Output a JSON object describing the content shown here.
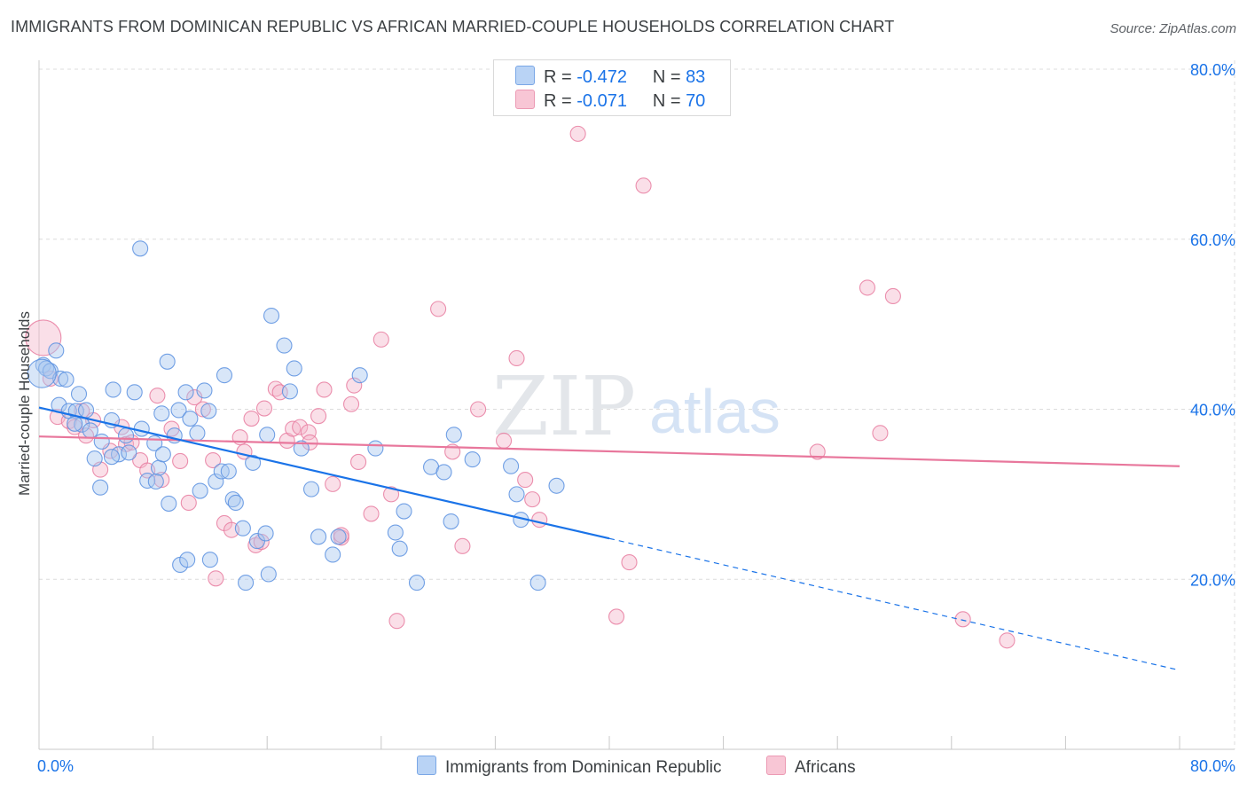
{
  "title": "IMMIGRANTS FROM DOMINICAN REPUBLIC VS AFRICAN MARRIED-COUPLE HOUSEHOLDS CORRELATION CHART",
  "source": "Source: ZipAtlas.com",
  "watermark": {
    "zip": "ZIP",
    "atlas": "atlas"
  },
  "legend": {
    "blue": {
      "r_label": "R =",
      "r_value": "-0.472",
      "n_label": "N =",
      "n_value": "83"
    },
    "pink": {
      "r_label": "R =",
      "r_value": "-0.071",
      "n_label": "N =",
      "n_value": "70"
    }
  },
  "colors": {
    "blue": "#1a73e8",
    "pink": "#e8779c",
    "blue_fill": "#a8c8f0",
    "pink_fill": "#f5b8cb",
    "grid": "#dcdcdc"
  },
  "chart_data": {
    "type": "scatter",
    "title": "IMMIGRANTS FROM DOMINICAN REPUBLIC VS AFRICAN MARRIED-COUPLE HOUSEHOLDS CORRELATION CHART",
    "xlabel": "",
    "ylabel": "Married-couple Households",
    "xlim": [
      0,
      80
    ],
    "ylim": [
      0,
      80
    ],
    "x_tick_labels": [
      "0.0%",
      "80.0%"
    ],
    "y_tick_labels": [
      "20.0%",
      "40.0%",
      "60.0%",
      "80.0%"
    ],
    "y_ticks": [
      20,
      40,
      60,
      80
    ],
    "series": [
      {
        "name": "Immigrants from Dominican Republic",
        "color": "blue",
        "points": [
          [
            0.3,
            45.2
          ],
          [
            0.5,
            44.8
          ],
          [
            0.8,
            44.5
          ],
          [
            1.2,
            46.9
          ],
          [
            1.5,
            43.6
          ],
          [
            1.9,
            43.5
          ],
          [
            1.4,
            40.5
          ],
          [
            2.1,
            39.8
          ],
          [
            2.6,
            39.8
          ],
          [
            2.8,
            41.8
          ],
          [
            3.0,
            38.2
          ],
          [
            3.3,
            39.9
          ],
          [
            3.6,
            37.5
          ],
          [
            3.9,
            34.2
          ],
          [
            4.4,
            36.2
          ],
          [
            5.1,
            38.7
          ],
          [
            5.2,
            42.3
          ],
          [
            5.6,
            34.7
          ],
          [
            6.1,
            36.9
          ],
          [
            6.7,
            42.0
          ],
          [
            6.3,
            34.9
          ],
          [
            7.2,
            37.7
          ],
          [
            7.6,
            31.6
          ],
          [
            8.1,
            36.0
          ],
          [
            8.4,
            33.1
          ],
          [
            8.6,
            39.5
          ],
          [
            9.0,
            45.6
          ],
          [
            8.7,
            34.7
          ],
          [
            9.5,
            36.9
          ],
          [
            9.8,
            39.9
          ],
          [
            10.3,
            42.0
          ],
          [
            10.6,
            38.9
          ],
          [
            11.1,
            37.2
          ],
          [
            11.3,
            30.4
          ],
          [
            11.6,
            42.2
          ],
          [
            11.9,
            39.8
          ],
          [
            12.4,
            31.5
          ],
          [
            12.8,
            32.7
          ],
          [
            13.0,
            44.0
          ],
          [
            13.3,
            32.7
          ],
          [
            13.6,
            29.4
          ],
          [
            13.8,
            29.0
          ],
          [
            14.5,
            19.6
          ],
          [
            14.3,
            26.0
          ],
          [
            15.0,
            33.7
          ],
          [
            15.3,
            24.5
          ],
          [
            16.1,
            20.6
          ],
          [
            16.3,
            51.0
          ],
          [
            16.0,
            37.0
          ],
          [
            17.2,
            47.5
          ],
          [
            17.6,
            42.1
          ],
          [
            17.9,
            44.8
          ],
          [
            18.4,
            35.4
          ],
          [
            19.1,
            30.6
          ],
          [
            19.6,
            25.0
          ],
          [
            21.0,
            25.0
          ],
          [
            20.6,
            22.9
          ],
          [
            22.5,
            44.0
          ],
          [
            23.6,
            35.4
          ],
          [
            25.0,
            25.5
          ],
          [
            25.3,
            23.6
          ],
          [
            25.6,
            28.0
          ],
          [
            26.5,
            19.6
          ],
          [
            27.5,
            33.2
          ],
          [
            28.4,
            32.6
          ],
          [
            28.9,
            26.8
          ],
          [
            29.1,
            37.0
          ],
          [
            30.4,
            34.1
          ],
          [
            33.1,
            33.3
          ],
          [
            33.5,
            30.0
          ],
          [
            33.8,
            27.0
          ],
          [
            35.0,
            19.6
          ],
          [
            36.3,
            31.0
          ],
          [
            5.1,
            34.4
          ],
          [
            7.1,
            58.9
          ],
          [
            9.1,
            28.9
          ],
          [
            12.0,
            22.3
          ],
          [
            9.9,
            21.7
          ],
          [
            10.4,
            22.3
          ],
          [
            2.5,
            38.3
          ],
          [
            4.3,
            30.8
          ],
          [
            8.2,
            31.5
          ],
          [
            15.9,
            25.4
          ]
        ],
        "trend": {
          "x0": 0,
          "y0": 40.2,
          "x1": 40,
          "y1": 24.8,
          "dash_x1": 80,
          "dash_y1": 9.3
        }
      },
      {
        "name": "Africans",
        "color": "pink",
        "points": [
          [
            0.3,
            48.4
          ],
          [
            0.8,
            43.6
          ],
          [
            1.3,
            39.1
          ],
          [
            2.1,
            38.6
          ],
          [
            2.5,
            37.9
          ],
          [
            3.0,
            39.8
          ],
          [
            3.3,
            36.9
          ],
          [
            3.8,
            38.7
          ],
          [
            4.3,
            32.9
          ],
          [
            5.0,
            35.1
          ],
          [
            5.8,
            37.9
          ],
          [
            6.1,
            35.9
          ],
          [
            6.5,
            36.1
          ],
          [
            7.1,
            34.0
          ],
          [
            7.6,
            32.8
          ],
          [
            8.3,
            41.6
          ],
          [
            8.6,
            31.7
          ],
          [
            9.3,
            37.7
          ],
          [
            9.9,
            33.9
          ],
          [
            10.5,
            29.0
          ],
          [
            10.9,
            41.4
          ],
          [
            11.5,
            40.0
          ],
          [
            12.2,
            34.0
          ],
          [
            12.4,
            20.1
          ],
          [
            13.0,
            26.6
          ],
          [
            13.5,
            25.8
          ],
          [
            14.1,
            36.7
          ],
          [
            14.4,
            35.0
          ],
          [
            14.9,
            38.9
          ],
          [
            15.2,
            24.0
          ],
          [
            15.8,
            40.1
          ],
          [
            16.6,
            42.4
          ],
          [
            16.9,
            42.0
          ],
          [
            17.4,
            36.3
          ],
          [
            17.8,
            37.7
          ],
          [
            18.3,
            37.9
          ],
          [
            18.9,
            37.3
          ],
          [
            19.0,
            36.1
          ],
          [
            19.6,
            39.2
          ],
          [
            20.0,
            42.3
          ],
          [
            20.6,
            31.2
          ],
          [
            21.2,
            24.9
          ],
          [
            21.9,
            40.6
          ],
          [
            22.1,
            42.8
          ],
          [
            22.4,
            33.8
          ],
          [
            23.3,
            27.7
          ],
          [
            24.0,
            48.2
          ],
          [
            24.7,
            30.0
          ],
          [
            25.1,
            15.1
          ],
          [
            28.0,
            51.8
          ],
          [
            29.0,
            35.0
          ],
          [
            29.7,
            23.9
          ],
          [
            30.8,
            40.0
          ],
          [
            32.6,
            36.3
          ],
          [
            33.5,
            46.0
          ],
          [
            34.1,
            31.7
          ],
          [
            34.6,
            29.4
          ],
          [
            35.1,
            27.0
          ],
          [
            37.8,
            72.4
          ],
          [
            40.5,
            15.6
          ],
          [
            41.4,
            22.0
          ],
          [
            42.4,
            66.3
          ],
          [
            54.6,
            35.0
          ],
          [
            58.1,
            54.3
          ],
          [
            59.0,
            37.2
          ],
          [
            59.9,
            53.3
          ],
          [
            64.8,
            15.3
          ],
          [
            67.9,
            12.8
          ],
          [
            21.2,
            25.2
          ],
          [
            15.6,
            24.4
          ]
        ],
        "trend": {
          "x0": 0,
          "y0": 36.8,
          "x1": 80,
          "y1": 33.3
        }
      }
    ]
  },
  "bottom_legend": {
    "blue_label": "Immigrants from Dominican Republic",
    "pink_label": "Africans"
  }
}
